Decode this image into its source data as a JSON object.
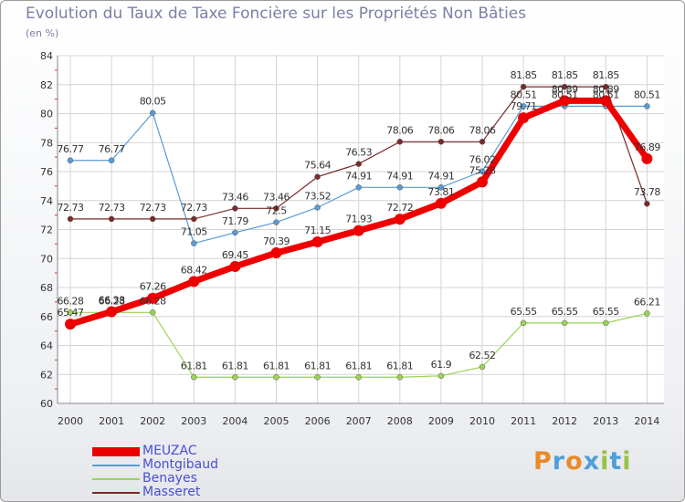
{
  "title": "Evolution du Taux de Taxe Foncière sur les Propriétés Non Bâties",
  "unit_label": "(en %)",
  "logo": {
    "letters": [
      "P",
      "r",
      "o",
      "x",
      "i",
      "t",
      "i"
    ],
    "colors": [
      "#e98b2b",
      "#4f9fd8",
      "#e98b2b",
      "#4f9fd8",
      "#98c243",
      "#4f9fd8",
      "#98c243"
    ]
  },
  "chart_data": {
    "type": "line",
    "title": "Evolution du Taux de Taxe Foncière sur les Propriétés Non Bâties",
    "ylabel": "(en %)",
    "xlabel": "",
    "x": [
      "2000",
      "2001",
      "2002",
      "2003",
      "2004",
      "2005",
      "2006",
      "2007",
      "2008",
      "2009",
      "2010",
      "2011",
      "2012",
      "2013",
      "2014"
    ],
    "ylim": [
      60,
      84
    ],
    "yticks": [
      "60",
      "62",
      "64",
      "66",
      "68",
      "70",
      "72",
      "74",
      "76",
      "78",
      "80",
      "82",
      "84"
    ],
    "grid": true,
    "legend_position": "bottom-left",
    "series": [
      {
        "name": "MEUZAC",
        "color": "#ee0000",
        "emphasis": true,
        "values": [
          65.47,
          66.33,
          67.26,
          68.42,
          69.45,
          70.39,
          71.15,
          71.93,
          72.72,
          73.81,
          75.28,
          79.71,
          80.89,
          80.89,
          76.89
        ],
        "labels": [
          "65.47",
          "66.33",
          "67.26",
          "68.42",
          "69.45",
          "70.39",
          "71.15",
          "71.93",
          "72.72",
          "73.81",
          "75.28",
          "79.71",
          "80.89",
          "80.89",
          "76.89"
        ]
      },
      {
        "name": "Montgibaud",
        "color": "#5a9bd5",
        "values": [
          76.77,
          76.77,
          80.05,
          71.05,
          71.79,
          72.5,
          73.52,
          74.91,
          74.91,
          74.91,
          76.02,
          80.51,
          80.51,
          80.51,
          80.51
        ],
        "labels": [
          "76.77",
          "76.77",
          "80.05",
          "71.05",
          "71.79",
          "72.5",
          "73.52",
          "74.91",
          "74.91",
          "74.91",
          "76.02",
          "80.51",
          "80.51",
          "80.51",
          "80.51"
        ]
      },
      {
        "name": "Benayes",
        "color": "#9ad455",
        "values": [
          66.28,
          66.28,
          66.28,
          61.81,
          61.81,
          61.81,
          61.81,
          61.81,
          61.81,
          61.9,
          62.52,
          65.55,
          65.55,
          65.55,
          66.21
        ],
        "labels": [
          "66.28",
          "66.28",
          "66.28",
          "61.81",
          "61.81",
          "61.81",
          "61.81",
          "61.81",
          "61.81",
          "61.9",
          "62.52",
          "65.55",
          "65.55",
          "65.55",
          "66.21"
        ]
      },
      {
        "name": "Masseret",
        "color": "#7a2a2a",
        "values": [
          72.73,
          72.73,
          72.73,
          72.73,
          73.46,
          73.46,
          75.64,
          76.53,
          78.06,
          78.06,
          78.06,
          81.85,
          81.85,
          81.85,
          73.78
        ],
        "labels": [
          "72.73",
          "72.73",
          "72.73",
          "72.73",
          "73.46",
          "73.46",
          "75.64",
          "76.53",
          "78.06",
          "78.06",
          "78.06",
          "81.85",
          "81.85",
          "81.85",
          "73.78"
        ]
      }
    ]
  }
}
